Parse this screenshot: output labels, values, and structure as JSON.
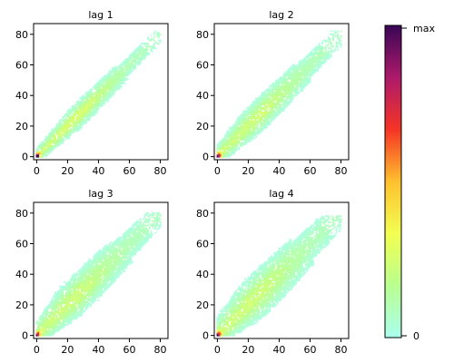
{
  "chart_data": {
    "type": "heatmap",
    "grid": false,
    "legend": "right",
    "xlim": [
      -2,
      85
    ],
    "ylim": [
      -2,
      87
    ],
    "xticks": [
      0,
      20,
      40,
      60,
      80
    ],
    "yticks": [
      0,
      20,
      40,
      60,
      80
    ],
    "panels": [
      {
        "title": "lag 1",
        "max_xy": [
          80,
          82
        ],
        "spread": 4.5
      },
      {
        "title": "lag 2",
        "max_xy": [
          80,
          82
        ],
        "spread": 6.0
      },
      {
        "title": "lag 3",
        "max_xy": [
          80,
          80
        ],
        "spread": 7.5
      },
      {
        "title": "lag 4",
        "max_xy": [
          80,
          78
        ],
        "spread": 8.5
      }
    ],
    "colorbar": {
      "label_max": "max",
      "label_min": "0",
      "stops": [
        "#aaffee",
        "#b9ff90",
        "#f2ff50",
        "#ffc02e",
        "#f53425",
        "#ad1a6a",
        "#3a0656"
      ]
    }
  }
}
